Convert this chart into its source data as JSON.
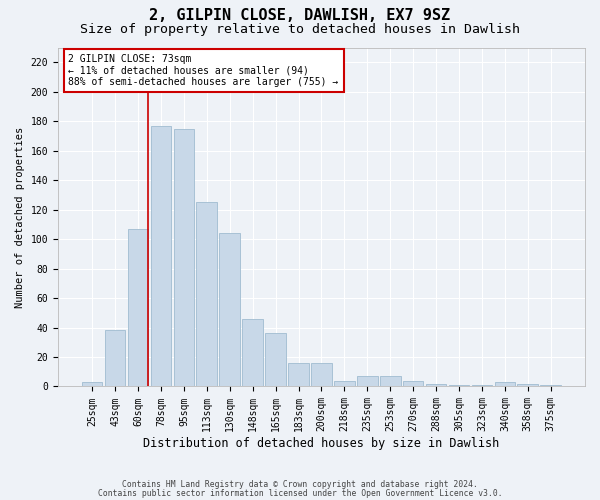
{
  "title1": "2, GILPIN CLOSE, DAWLISH, EX7 9SZ",
  "title2": "Size of property relative to detached houses in Dawlish",
  "xlabel": "Distribution of detached houses by size in Dawlish",
  "ylabel": "Number of detached properties",
  "footer1": "Contains HM Land Registry data © Crown copyright and database right 2024.",
  "footer2": "Contains public sector information licensed under the Open Government Licence v3.0.",
  "categories": [
    "25sqm",
    "43sqm",
    "60sqm",
    "78sqm",
    "95sqm",
    "113sqm",
    "130sqm",
    "148sqm",
    "165sqm",
    "183sqm",
    "200sqm",
    "218sqm",
    "235sqm",
    "253sqm",
    "270sqm",
    "288sqm",
    "305sqm",
    "323sqm",
    "340sqm",
    "358sqm",
    "375sqm"
  ],
  "values": [
    3,
    38,
    107,
    177,
    175,
    125,
    104,
    46,
    36,
    16,
    16,
    4,
    7,
    7,
    4,
    2,
    1,
    1,
    3,
    2,
    1
  ],
  "bar_color": "#c8d8e8",
  "bar_edge_color": "#a0bcd0",
  "red_line_color": "#cc0000",
  "red_line_x": 2.43,
  "annotation_title": "2 GILPIN CLOSE: 73sqm",
  "annotation_line1": "← 11% of detached houses are smaller (94)",
  "annotation_line2": "88% of semi-detached houses are larger (755) →",
  "annotation_box_facecolor": "#ffffff",
  "annotation_box_edgecolor": "#cc0000",
  "background_color": "#eef2f7",
  "grid_color": "#ffffff",
  "ylim": [
    0,
    230
  ],
  "yticks": [
    0,
    20,
    40,
    60,
    80,
    100,
    120,
    140,
    160,
    180,
    200,
    220
  ],
  "title1_fontsize": 11,
  "title2_fontsize": 9.5,
  "xlabel_fontsize": 8.5,
  "ylabel_fontsize": 7.5,
  "tick_fontsize": 7,
  "annotation_fontsize": 7,
  "footer_fontsize": 5.8
}
